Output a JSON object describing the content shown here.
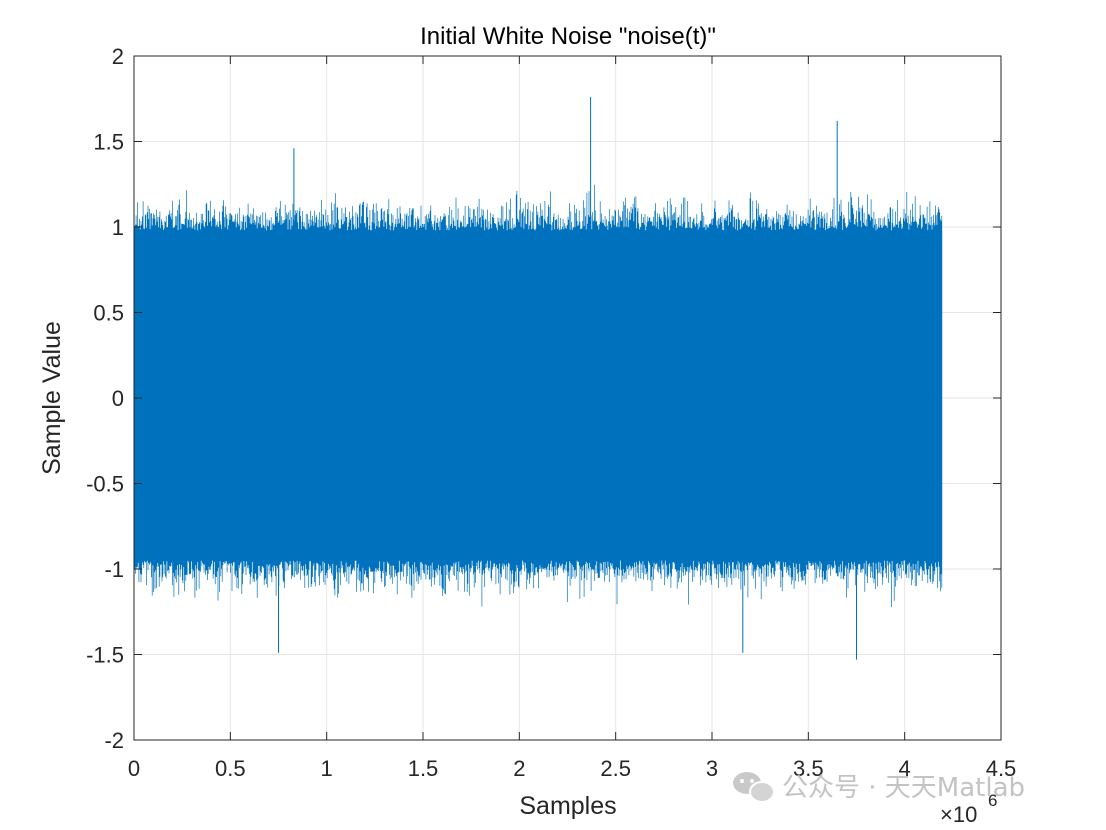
{
  "chart_data": {
    "type": "line",
    "title": "Initial White Noise \"noise(t)\"",
    "xlabel": "Samples",
    "ylabel": "Sample Value",
    "xlim": [
      0,
      4.5
    ],
    "ylim": [
      -2,
      2
    ],
    "x_multiplier_label": "×10",
    "x_multiplier_exponent": "6",
    "x_ticks": [
      0,
      0.5,
      1,
      1.5,
      2,
      2.5,
      3,
      3.5,
      4,
      4.5
    ],
    "x_tick_labels": [
      "0",
      "0.5",
      "1",
      "1.5",
      "2",
      "2.5",
      "3",
      "3.5",
      "4",
      "4.5"
    ],
    "y_ticks": [
      -2,
      -1.5,
      -1,
      -0.5,
      0,
      0.5,
      1,
      1.5,
      2
    ],
    "y_tick_labels": [
      "-2",
      "-1.5",
      "-1",
      "-0.5",
      "0",
      "0.5",
      "1",
      "1.5",
      "2"
    ],
    "grid": true,
    "series": [
      {
        "color": "#0072BD",
        "x_range": [
          0,
          4.194304
        ],
        "approx_amplitude_envelope": [
          -1.53,
          1.76
        ],
        "dense_band": [
          -0.95,
          0.98
        ],
        "peaks": [
          {
            "x": 0.83,
            "y": 1.46
          },
          {
            "x": 2.37,
            "y": 1.76
          },
          {
            "x": 3.65,
            "y": 1.62
          },
          {
            "x": 0.75,
            "y": -1.49
          },
          {
            "x": 3.75,
            "y": -1.53
          },
          {
            "x": 3.16,
            "y": -1.49
          }
        ]
      }
    ]
  },
  "watermark": {
    "icon": "wechat-icon",
    "text": "公众号 · 天天Matlab"
  }
}
